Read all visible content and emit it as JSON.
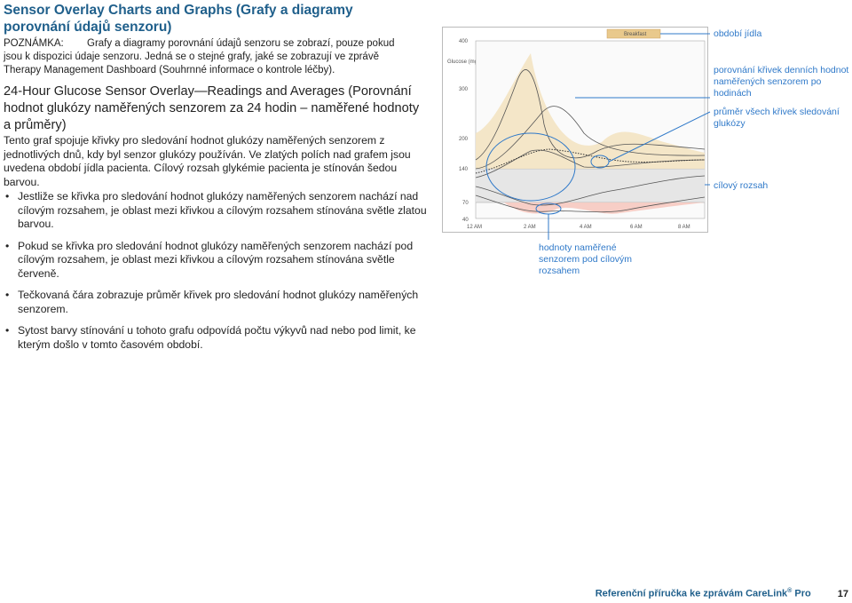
{
  "title": "Sensor Overlay Charts and Graphs (Grafy a diagramy porovnání údajů senzoru)",
  "note": {
    "label": "POZNÁMKA:",
    "text": "Grafy a diagramy porovnání údajů senzoru se zobrazí, pouze pokud jsou k dispozici údaje senzoru. Jedná se o stejné grafy, jaké se zobrazují ve zprávě Therapy Management Dashboard (Souhrnné informace o kontrole léčby)."
  },
  "subheading": "24-Hour Glucose Sensor Overlay—Readings and Averages (Porovnání hodnot glukózy naměřených senzorem za 24 hodin – naměřené hodnoty a průměry)",
  "description": "Tento graf spojuje křivky pro sledování hodnot glukózy naměřených senzorem z jednotlivých dnů, kdy byl senzor glukózy používán. Ve zlatých polích nad grafem jsou uvedena období jídla pacienta. Cílový rozsah glykémie pacienta je stínován šedou barvou.",
  "bullets": [
    "Jestliže se křivka pro sledování hodnot glukózy naměřených senzorem nachází nad cílovým rozsahem, je oblast mezi křivkou a cílovým rozsahem stínována světle zlatou barvou.",
    "Pokud se křivka pro sledování hodnot glukózy naměřených senzorem nachází pod cílovým rozsahem, je oblast mezi křivkou a cílovým rozsahem stínována světle červeně.",
    "Tečkovaná čára zobrazuje průměr křivek pro sledování hodnot glukózy naměřených senzorem.",
    "Sytost barvy stínování u tohoto grafu odpovídá počtu výkyvů nad nebo pod limit, ke kterým došlo v tomto časovém období."
  ],
  "chart": {
    "ylabel": "Glucose (mg/dL)",
    "yticks": [
      "400",
      "300",
      "200",
      "140",
      "70",
      "40"
    ],
    "xticks": [
      "12 AM",
      "2 AM",
      "4 AM",
      "6 AM",
      "8 AM"
    ],
    "meal_label": "Breakfast",
    "colors": {
      "target": "#e6e6e6",
      "above": "#f3e3c2",
      "below": "#f6c9c0",
      "meal": "#e9c98c",
      "callout": "#2f79c9"
    }
  },
  "callouts": {
    "meal_period": "období jídla",
    "overlay": "porovnání křivek denních hodnot naměřených senzorem po hodinách",
    "average": "průměr všech křivek sledování glukózy",
    "target": "cílový rozsah",
    "below": "hodnoty naměřené senzorem pod cílovým rozsahem"
  },
  "footer": {
    "text": "Referenční příručka ke zprávám CareLink",
    "reg": "®",
    "suffix": " Pro",
    "page": "17"
  }
}
